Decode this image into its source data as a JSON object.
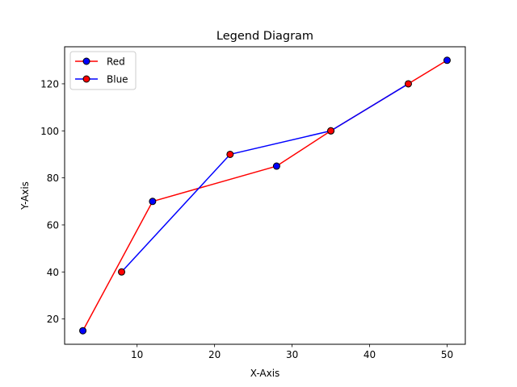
{
  "chart_data": {
    "type": "line",
    "title": "Legend Diagram",
    "xlabel": "X-Axis",
    "ylabel": "Y-Axis",
    "xlim": [
      0.65,
      52.35
    ],
    "ylim": [
      9.25,
      135.75
    ],
    "xticks": [
      10,
      20,
      30,
      40,
      50
    ],
    "yticks": [
      20,
      40,
      60,
      80,
      100,
      120
    ],
    "grid": false,
    "legend_position": "upper-left",
    "series": [
      {
        "name": "Red",
        "line_color": "#ff0000",
        "marker_color": "#0000ff",
        "x": [
          3,
          12,
          28,
          35,
          50
        ],
        "y": [
          15,
          70,
          85,
          100,
          130
        ]
      },
      {
        "name": "Blue",
        "line_color": "#0000ff",
        "marker_color": "#ff0000",
        "x": [
          8,
          22,
          35,
          45
        ],
        "y": [
          40,
          90,
          100,
          120
        ]
      }
    ]
  }
}
